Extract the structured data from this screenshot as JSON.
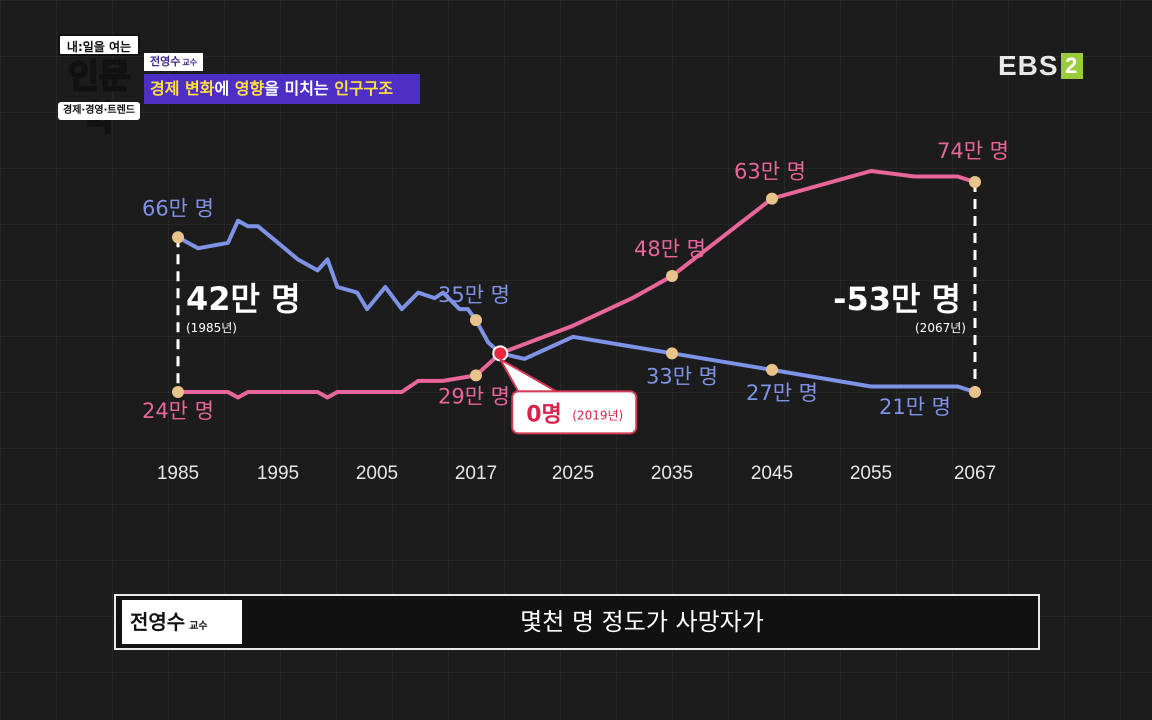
{
  "show_logo": {
    "line1": "내:일을 여는",
    "line2": "인문학",
    "line3": "경제·경영·트렌드"
  },
  "speaker_tag": {
    "name": "전영수",
    "title": "교수"
  },
  "topic_banner": {
    "part1": "경제 변화",
    "part2": "에 ",
    "part3": "영향",
    "part4": "을 미치는 ",
    "part5": "인구구조"
  },
  "broadcaster": {
    "name": "EBS",
    "channel": "2"
  },
  "subtitle": {
    "speaker": "전영수",
    "speaker_title": "교수",
    "text": "몇천 명 정도가 사망자가"
  },
  "colors": {
    "births": "#e9669b",
    "deaths": "#7f93e6",
    "marker": "#e8c48b",
    "zero_marker": "#e8283c"
  },
  "chart_data": {
    "type": "line",
    "x_ticks": [
      "1985",
      "1995",
      "2005",
      "2017",
      "2025",
      "2035",
      "2045",
      "2055",
      "2067"
    ],
    "series": [
      {
        "key": "blue",
        "color": "#7f93e6",
        "points": [
          [
            1985,
            66
          ],
          [
            1987,
            64
          ],
          [
            1990,
            65
          ],
          [
            1991,
            69
          ],
          [
            1992,
            68
          ],
          [
            1993,
            68
          ],
          [
            1995,
            65
          ],
          [
            1997,
            62
          ],
          [
            1999,
            60
          ],
          [
            2000,
            62
          ],
          [
            2001,
            57
          ],
          [
            2003,
            56
          ],
          [
            2004,
            53
          ],
          [
            2006,
            57
          ],
          [
            2008,
            53
          ],
          [
            2010,
            56
          ],
          [
            2012,
            55
          ],
          [
            2013,
            56
          ],
          [
            2015,
            53
          ],
          [
            2016,
            53
          ],
          [
            2017,
            51
          ],
          [
            2018,
            47
          ],
          [
            2019,
            45
          ],
          [
            2021,
            44
          ],
          [
            2023,
            46
          ],
          [
            2025,
            48
          ],
          [
            2035,
            45
          ],
          [
            2045,
            42
          ],
          [
            2055,
            39
          ],
          [
            2065,
            39
          ],
          [
            2067,
            38
          ]
        ]
      },
      {
        "key": "pink",
        "color": "#e9669b",
        "points": [
          [
            1985,
            38
          ],
          [
            1988,
            38
          ],
          [
            1990,
            38
          ],
          [
            1991,
            37
          ],
          [
            1992,
            38
          ],
          [
            1993,
            38
          ],
          [
            1995,
            38
          ],
          [
            1997,
            38
          ],
          [
            1999,
            38
          ],
          [
            2000,
            37
          ],
          [
            2001,
            38
          ],
          [
            2003,
            38
          ],
          [
            2004,
            38
          ],
          [
            2006,
            38
          ],
          [
            2008,
            38
          ],
          [
            2010,
            40
          ],
          [
            2013,
            40
          ],
          [
            2017,
            41
          ],
          [
            2019,
            45
          ],
          [
            2025,
            50
          ],
          [
            2031,
            55
          ],
          [
            2035,
            59
          ],
          [
            2040,
            66
          ],
          [
            2045,
            73
          ],
          [
            2055,
            78
          ],
          [
            2060,
            77
          ],
          [
            2065,
            77
          ],
          [
            2067,
            76
          ]
        ]
      }
    ],
    "annotations": [
      {
        "label": "66만 명",
        "series": "blue",
        "x": 1985,
        "y": 66,
        "marker": true
      },
      {
        "label": "24만 명",
        "series": "pink",
        "x": 1985,
        "y": 38,
        "marker": true
      },
      {
        "label": "35만 명",
        "series": "blue",
        "x": 2017,
        "y": 51,
        "marker": true
      },
      {
        "label": "29만 명",
        "series": "pink",
        "x": 2017,
        "y": 41,
        "marker": true
      },
      {
        "label": "48만 명",
        "series": "pink",
        "x": 2035,
        "y": 59,
        "marker": true
      },
      {
        "label": "33만 명",
        "series": "blue",
        "x": 2035,
        "y": 45,
        "marker": true
      },
      {
        "label": "63만 명",
        "series": "pink",
        "x": 2045,
        "y": 73,
        "marker": true
      },
      {
        "label": "27만 명",
        "series": "blue",
        "x": 2045,
        "y": 42,
        "marker": true
      },
      {
        "label": "74만 명",
        "series": "pink",
        "x": 2067,
        "y": 76,
        "marker": true
      },
      {
        "label": "21만 명",
        "series": "blue",
        "x": 2067,
        "y": 38,
        "marker": true
      }
    ],
    "gap_annotations": [
      {
        "x": 1985,
        "value": "42만 명",
        "year": "(1985년)"
      },
      {
        "x": 2067,
        "value": "-53만 명",
        "year": "(2067년)"
      }
    ],
    "crossover": {
      "x": 2019,
      "y": 45,
      "value": "0명",
      "year": "(2019년)"
    }
  }
}
